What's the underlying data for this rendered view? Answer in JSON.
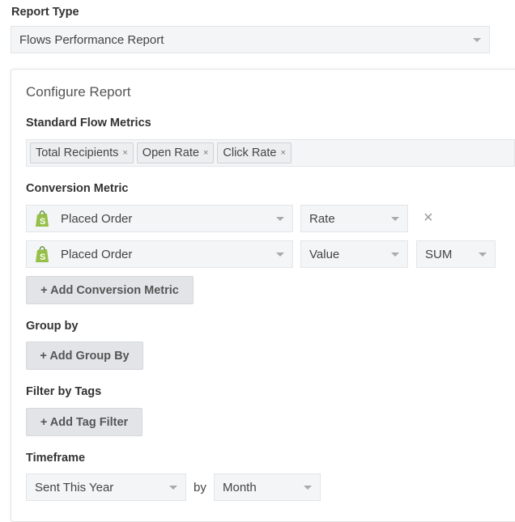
{
  "report_type": {
    "label": "Report Type",
    "value": "Flows Performance Report"
  },
  "configure": {
    "title": "Configure Report",
    "standard_metrics": {
      "label": "Standard Flow Metrics",
      "tags": [
        "Total Recipients",
        "Open Rate",
        "Click Rate"
      ]
    },
    "conversion": {
      "label": "Conversion Metric",
      "rows": [
        {
          "metric": "Placed Order",
          "type": "Rate"
        },
        {
          "metric": "Placed Order",
          "type": "Value",
          "agg": "SUM"
        }
      ],
      "add_label": "+ Add Conversion Metric"
    },
    "group_by": {
      "label": "Group by",
      "add_label": "+ Add Group By"
    },
    "filter_tags": {
      "label": "Filter by Tags",
      "add_label": "+ Add Tag Filter"
    },
    "timeframe": {
      "label": "Timeframe",
      "value": "Sent This Year",
      "by": "by",
      "interval": "Month"
    }
  },
  "colors": {
    "shopify_green": "#95bf47"
  }
}
